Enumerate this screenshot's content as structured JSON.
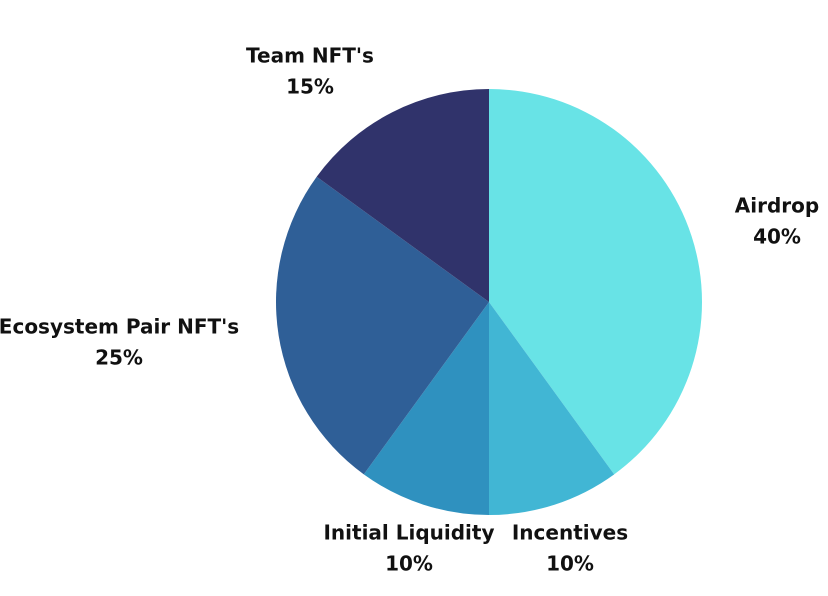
{
  "chart_data": {
    "type": "pie",
    "title": "",
    "start_angle_deg": 0,
    "direction": "clockwise",
    "slices": [
      {
        "label": "Airdrop",
        "value": 40,
        "value_label": "40%",
        "color": "#68E3E6"
      },
      {
        "label": "Incentives",
        "value": 10,
        "value_label": "10%",
        "color": "#41B6D4"
      },
      {
        "label": "Initial Liquidity",
        "value": 10,
        "value_label": "10%",
        "color": "#2F91BF"
      },
      {
        "label": "Ecosystem Pair NFT's",
        "value": 25,
        "value_label": "25%",
        "color": "#2F5F97"
      },
      {
        "label": "Team NFT's",
        "value": 15,
        "value_label": "15%",
        "color": "#30336B"
      }
    ]
  }
}
